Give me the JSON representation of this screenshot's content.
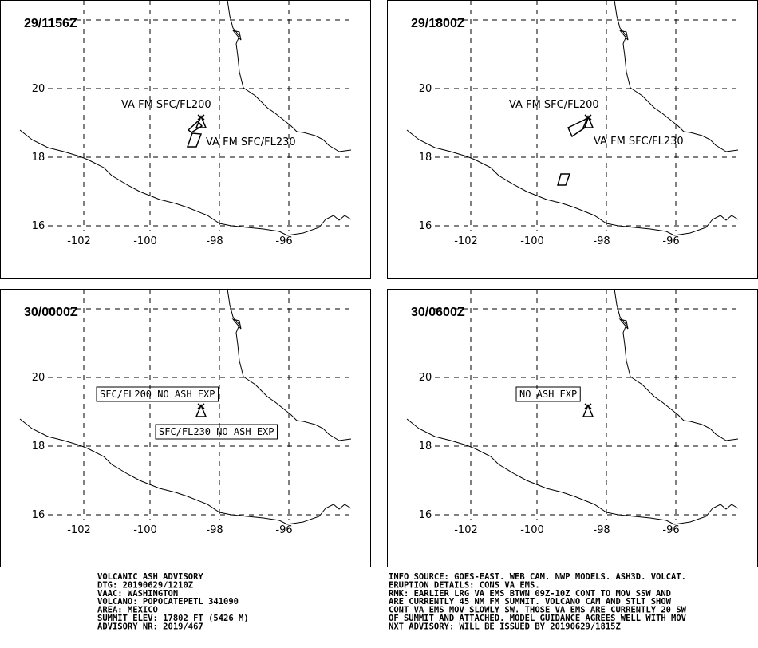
{
  "panels": [
    {
      "time": "29/1156Z",
      "labels": [
        "VA FM SFC/FL200",
        "VA FM SFC/FL230"
      ]
    },
    {
      "time": "29/1800Z",
      "labels": [
        "VA FM SFC/FL200",
        "VA FM SFC/FL230"
      ]
    },
    {
      "time": "30/0000Z",
      "labels": [
        "SFC/FL200 NO ASH EXP",
        "SFC/FL230 NO ASH EXP"
      ]
    },
    {
      "time": "30/0600Z",
      "labels": [
        "NO ASH EXP"
      ]
    }
  ],
  "map": {
    "lat_labels": [
      "20",
      "18",
      "16"
    ],
    "lon_labels": [
      "-102",
      "-100",
      "-98",
      "-96"
    ]
  },
  "advisory": {
    "left": [
      "VOLCANIC ASH ADVISORY",
      "DTG: 20190629/1210Z",
      "VAAC: WASHINGTON",
      "VOLCANO: POPOCATEPETL 341090",
      "AREA: MEXICO",
      "SUMMIT ELEV: 17802 FT (5426 M)",
      "ADVISORY NR: 2019/467"
    ],
    "right": [
      "INFO SOURCE: GOES-EAST. WEB CAM. NWP MODELS. ASH3D. VOLCAT.",
      "ERUPTION DETAILS: CONS VA EMS.",
      "RMK: EARLIER LRG VA EMS BTWN 09Z-10Z CONT TO MOV SSW AND",
      "ARE CURRENTLY 45 NM FM SUMMIT. VOLCANO CAM AND STLT SHOW",
      "CONT VA EMS MOV SLOWLY SW. THOSE VA EMS ARE CURRENTLY 20 SW",
      "OF SUMMIT AND ATTACHED. MODEL GUIDANCE AGREES WELL WITH MOV",
      "NXT ADVISORY: WILL BE ISSUED BY 20190629/1815Z"
    ]
  }
}
